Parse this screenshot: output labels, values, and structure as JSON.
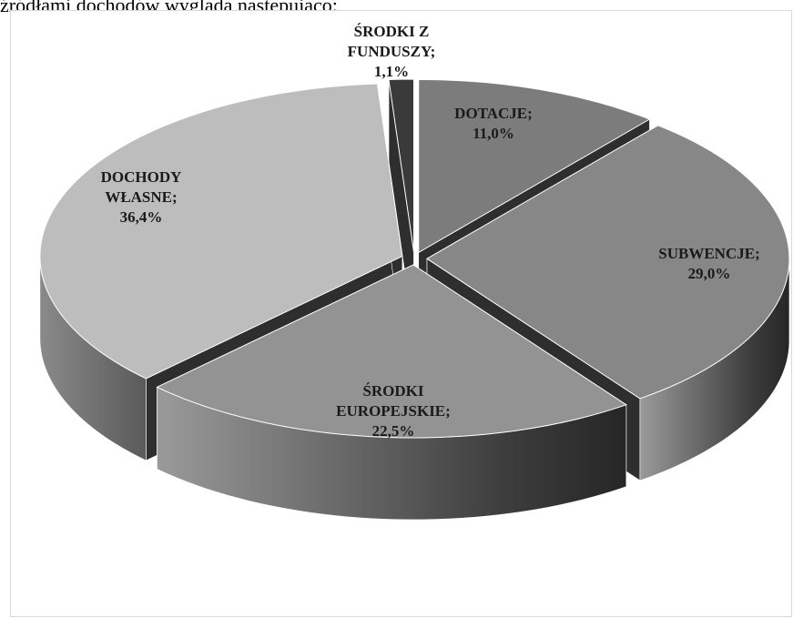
{
  "header": {
    "text": "źródłami dochodów wygląda następująco:"
  },
  "chart_data": {
    "type": "pie",
    "style": "3d-exploded",
    "legend": "none",
    "slices": [
      {
        "lines": [
          "DOTACJE;",
          "11,0%"
        ],
        "value": 11.0,
        "color": "#7c7c7c"
      },
      {
        "lines": [
          "SUBWENCJE;",
          "29,0%"
        ],
        "value": 29.0,
        "color": "#878787"
      },
      {
        "lines": [
          "ŚRODKI",
          "EUROPEJSKIE;",
          "22,5%"
        ],
        "value": 22.5,
        "color": "#939393"
      },
      {
        "lines": [
          "DOCHODY",
          "WŁASNE;",
          "36,4%"
        ],
        "value": 36.4,
        "color": "#bdbdbd"
      },
      {
        "lines": [
          "ŚRODKI Z",
          "FUNDUSZY;",
          "1,1%"
        ],
        "value": 1.1,
        "color": "#3a3a3a"
      }
    ]
  }
}
